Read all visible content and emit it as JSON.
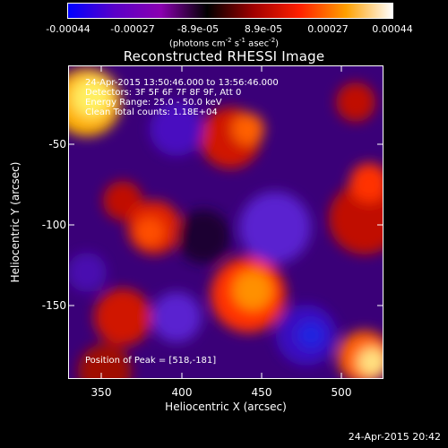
{
  "colorbar": {
    "ticks": [
      "-0.00044",
      "-0.00027",
      "-8.9e-05",
      "8.9e-05",
      "0.00027",
      "0.00044"
    ],
    "units_main": "(photons cm",
    "units_sup1": "-2",
    "units_mid": " s",
    "units_sup2": "-1",
    "units_mid2": " asec",
    "units_sup3": "-2",
    "units_end": ")",
    "colors": [
      "#0000ff",
      "#5a00c8",
      "#8a00b0",
      "#000000",
      "#a00000",
      "#ff2000",
      "#ffa000",
      "#ffffff"
    ]
  },
  "title": "Reconstructed RHESSI Image",
  "info": {
    "time": "24-Apr-2015 13:50:46.000 to 13:56:46.000",
    "detectors": "Detectors: 3F 5F 6F 7F 8F 9F, Att 0",
    "energy": "Energy Range: 25.0 - 50.0 keV",
    "clean": "Clean     Total counts: 1.18E+04",
    "peak": "Position of Peak = [518,-181]"
  },
  "axes": {
    "xlabel": "Heliocentric X (arcsec)",
    "ylabel": "Heliocentric Y (arcsec)",
    "xticks": [
      "350",
      "400",
      "450",
      "500"
    ],
    "yticks": [
      "-50",
      "-100",
      "-150"
    ],
    "xlim": [
      330,
      526
    ],
    "ylim": [
      -195,
      -20
    ]
  },
  "timestamp": "24-Apr-2015 20:42"
}
